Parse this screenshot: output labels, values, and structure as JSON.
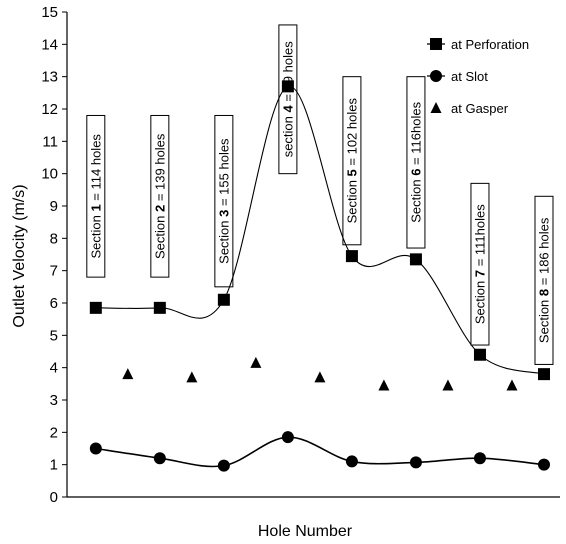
{
  "chart_data": {
    "type": "line",
    "xlabel": "Hole Number",
    "ylabel": "Outlet Velocity (m/s)",
    "ylim": [
      0,
      15
    ],
    "yticks": [
      0,
      1,
      2,
      3,
      4,
      5,
      6,
      7,
      8,
      9,
      10,
      11,
      12,
      13,
      14,
      15
    ],
    "grid": false,
    "legend_position": "top-right",
    "series": [
      {
        "name": "at Perforation",
        "marker": "square",
        "line": "smooth",
        "x": [
          1,
          2,
          3,
          4,
          5,
          6,
          7,
          8
        ],
        "y": [
          5.85,
          5.85,
          6.1,
          12.7,
          7.45,
          7.35,
          4.4,
          3.8
        ]
      },
      {
        "name": "at Slot",
        "marker": "circle",
        "line": "smooth",
        "x": [
          1,
          2,
          3,
          4,
          5,
          6,
          7,
          8
        ],
        "y": [
          1.5,
          1.2,
          0.97,
          1.85,
          1.1,
          1.07,
          1.2,
          1.0
        ]
      },
      {
        "name": "at Gasper",
        "marker": "triangle",
        "line": "none",
        "x": [
          1.5,
          2.5,
          3.5,
          4.5,
          5.5,
          6.5,
          7.5
        ],
        "y": [
          3.8,
          3.7,
          4.15,
          3.7,
          3.45,
          3.45,
          3.45
        ]
      }
    ],
    "annotations": [
      {
        "x": 1,
        "prefix": "Section ",
        "num": "1",
        "suffix": " = 114 holes",
        "y_top": 11.8,
        "y_bottom": 6.8
      },
      {
        "x": 2,
        "prefix": "Section ",
        "num": "2",
        "suffix": " = 139 holes",
        "y_top": 11.8,
        "y_bottom": 6.8
      },
      {
        "x": 3,
        "prefix": "Section ",
        "num": "3",
        "suffix": " = 155 holes",
        "y_top": 11.8,
        "y_bottom": 6.5
      },
      {
        "x": 4,
        "prefix": "section ",
        "num": "4",
        "suffix": " = 19 holes",
        "y_top": 14.6,
        "y_bottom": 10.0
      },
      {
        "x": 5,
        "prefix": "Section ",
        "num": "5",
        "suffix": " = 102 holes",
        "y_top": 13.0,
        "y_bottom": 7.8
      },
      {
        "x": 6,
        "prefix": "Section ",
        "num": "6",
        "suffix": " = 116holes",
        "y_top": 13.0,
        "y_bottom": 7.7
      },
      {
        "x": 7,
        "prefix": "Section ",
        "num": "7",
        "suffix": " = 111holes",
        "y_top": 9.7,
        "y_bottom": 4.7
      },
      {
        "x": 8,
        "prefix": "Section ",
        "num": "8",
        "suffix": " = 186 holes",
        "y_top": 9.3,
        "y_bottom": 4.1
      }
    ]
  }
}
